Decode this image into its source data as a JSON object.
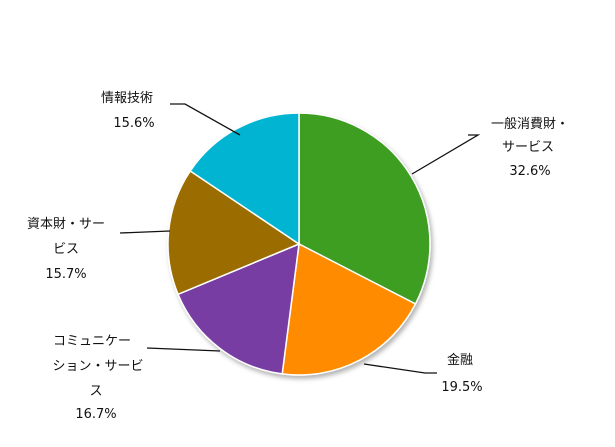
{
  "chart_data": {
    "type": "pie",
    "title": "",
    "start": "top",
    "direction": "clockwise",
    "slices": [
      {
        "label_lines": [
          "一般消費財・",
          "サービス"
        ],
        "value": 32.6,
        "value_label": "32.6%",
        "color": "#3e9e23"
      },
      {
        "label_lines": [
          "金融"
        ],
        "value": 19.5,
        "value_label": "19.5%",
        "color": "#ff8c00"
      },
      {
        "label_lines": [
          "コミュニケー",
          "ション・サービ",
          "ス"
        ],
        "value": 16.7,
        "value_label": "16.7%",
        "color": "#773ea3"
      },
      {
        "label_lines": [
          "資本財・サー",
          "ビス"
        ],
        "value": 15.7,
        "value_label": "15.7%",
        "color": "#9b6c00"
      },
      {
        "label_lines": [
          "情報技術"
        ],
        "value": 15.6,
        "value_label": "15.6%",
        "color": "#00b4d2"
      }
    ]
  }
}
